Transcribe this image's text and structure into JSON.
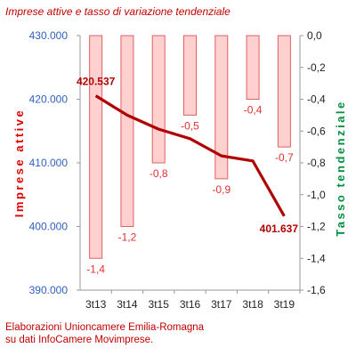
{
  "chart_data": {
    "type": "bar+line",
    "title": "Imprese attive e tasso di variazione tendenziale",
    "categories": [
      "3t13",
      "3t14",
      "3t15",
      "3t16",
      "3t17",
      "3t18",
      "3t19"
    ],
    "series": [
      {
        "name": "Imprese attive",
        "type": "line",
        "axis": "left",
        "values": [
          420537,
          417500,
          415300,
          413800,
          411100,
          410300,
          401637
        ],
        "labels": [
          "420.537",
          "",
          "",
          "",
          "",
          "",
          "401.637"
        ]
      },
      {
        "name": "Tasso tendenziale",
        "type": "bar",
        "axis": "right",
        "values": [
          -1.4,
          -1.2,
          -0.8,
          -0.5,
          -0.9,
          -0.4,
          -0.7
        ],
        "labels": [
          "-1,4",
          "-1,2",
          "-0,8",
          "-0,5",
          "-0,9",
          "-0,4",
          "-0,7"
        ]
      }
    ],
    "ylabel_left": "Imprese attive",
    "ylabel_right": "Tasso tendenziale",
    "ylim_left": [
      390000,
      430000
    ],
    "ylim_right": [
      -1.6,
      0
    ],
    "yticks_left": [
      "390.000",
      "400.000",
      "410.000",
      "420.000",
      "430.000"
    ],
    "yticks_right": [
      "-1,6",
      "-1,4",
      "-1,2",
      "-1,0",
      "-0,8",
      "-0,6",
      "-0,4",
      "-0,2",
      "0,0"
    ],
    "grid": false,
    "legend": "none"
  },
  "footer": {
    "line1": "Elaborazioni Unioncamere Emilia-Romagna",
    "line2": "su dati InfoCamere Movimprese."
  },
  "colors": {
    "line": "#b00000",
    "bar_fill": "#ffd0d0",
    "bar_stroke": "#e06060",
    "bar_label": "#e03030",
    "left_axis_text": "#3060c0",
    "left_axis_title": "#e00000",
    "right_axis_title": "#009040",
    "axis": "#999999"
  }
}
